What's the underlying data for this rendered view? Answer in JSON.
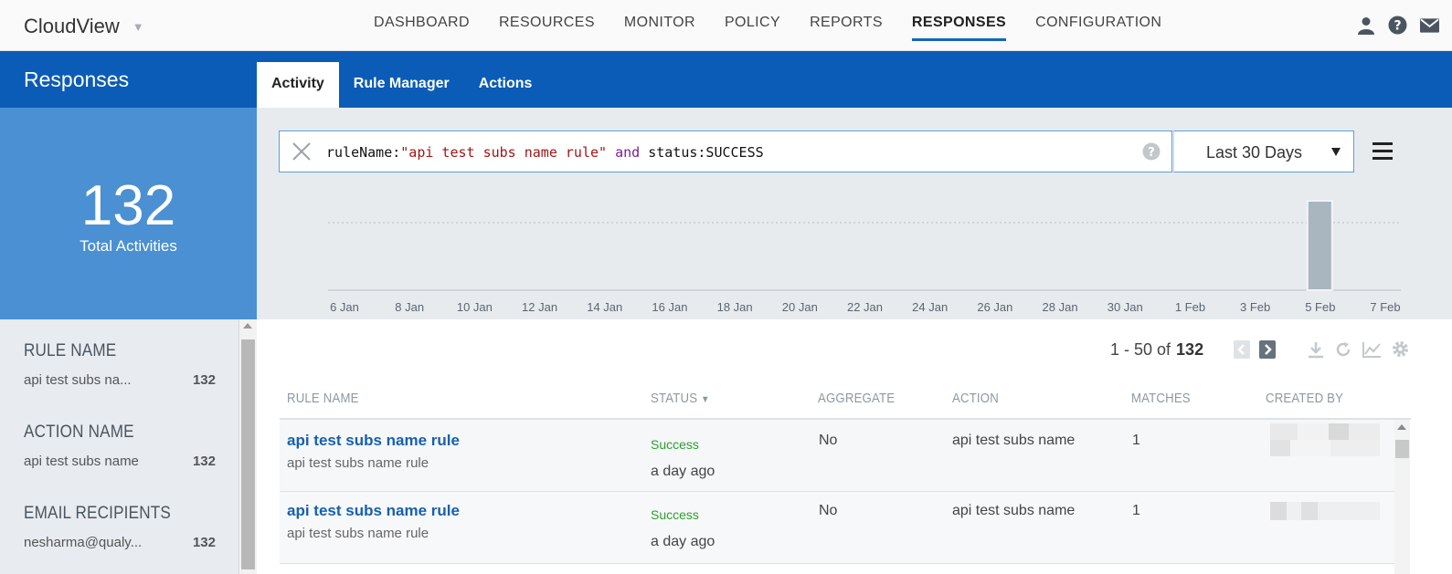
{
  "app": {
    "name": "CloudView"
  },
  "nav": {
    "items": [
      "DASHBOARD",
      "RESOURCES",
      "MONITOR",
      "POLICY",
      "REPORTS",
      "RESPONSES",
      "CONFIGURATION"
    ],
    "active": "RESPONSES",
    "icons": [
      "user-icon",
      "help-icon",
      "mail-icon"
    ]
  },
  "section": {
    "title": "Responses",
    "tabs": [
      "Activity",
      "Rule Manager",
      "Actions"
    ],
    "active_tab": "Activity"
  },
  "summary": {
    "count": "132",
    "label": "Total Activities"
  },
  "search": {
    "field1": "ruleName:",
    "value1": "\"api test subs name rule\"",
    "op": "and",
    "field2": "status:SUCCESS"
  },
  "date_range": "Last 30 Days",
  "chart_data": {
    "type": "bar",
    "x_ticks": [
      "6 Jan",
      "8 Jan",
      "10 Jan",
      "12 Jan",
      "14 Jan",
      "16 Jan",
      "18 Jan",
      "20 Jan",
      "22 Jan",
      "24 Jan",
      "26 Jan",
      "28 Jan",
      "30 Jan",
      "1 Feb",
      "3 Feb",
      "5 Feb",
      "7 Feb"
    ],
    "bars": [
      {
        "x": "5 Feb",
        "value": 132
      }
    ],
    "gridline_style": "dotted",
    "color": "#a9b6bf"
  },
  "facets": [
    {
      "title": "RULE NAME",
      "value": "api test subs na...",
      "count": "132"
    },
    {
      "title": "ACTION NAME",
      "value": "api test subs name",
      "count": "132"
    },
    {
      "title": "EMAIL RECIPIENTS",
      "value": "nesharma@qualy...",
      "count": "132"
    }
  ],
  "pagination": {
    "range": "1 - 50 of",
    "total": "132"
  },
  "table": {
    "columns": [
      "RULE NAME",
      "STATUS",
      "AGGREGATE",
      "ACTION",
      "MATCHES",
      "CREATED BY"
    ],
    "sort_column": "STATUS",
    "rows": [
      {
        "rule": "api test subs name rule",
        "rule_sub": "api test subs name rule",
        "status": "Success",
        "when": "a day ago",
        "aggregate": "No",
        "action": "api test subs name",
        "matches": "1"
      },
      {
        "rule": "api test subs name rule",
        "rule_sub": "api test subs name rule",
        "status": "Success",
        "when": "a day ago",
        "aggregate": "No",
        "action": "api test subs name",
        "matches": "1"
      }
    ]
  }
}
